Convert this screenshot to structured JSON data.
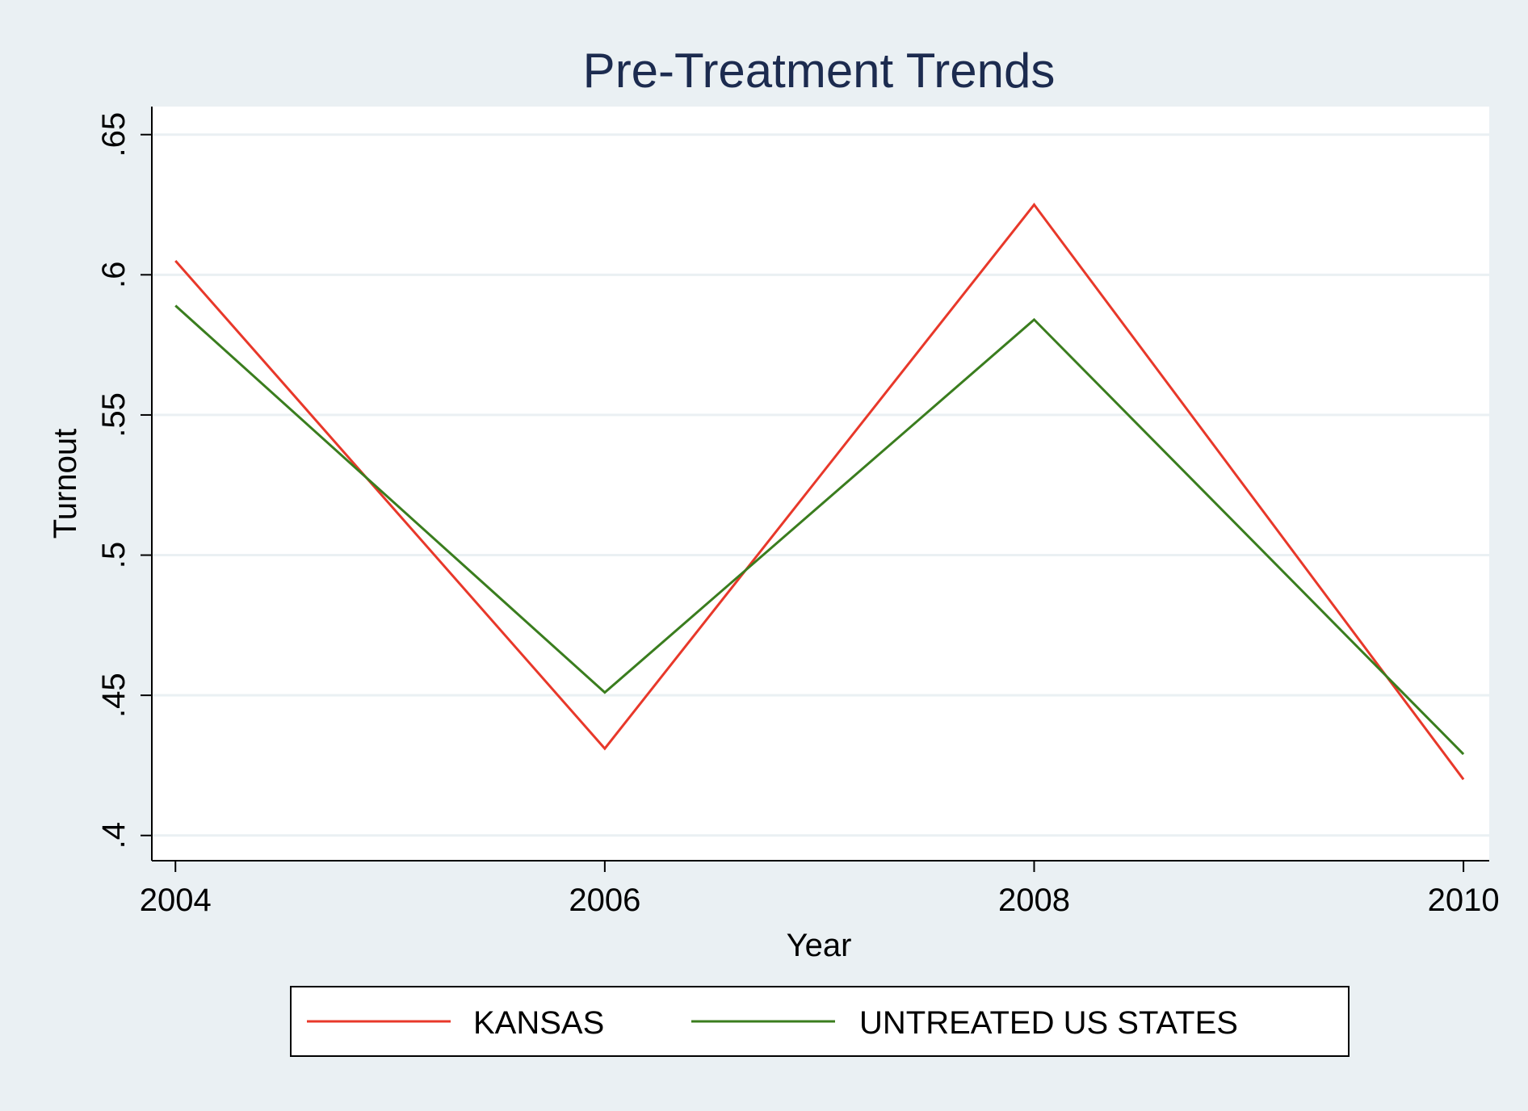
{
  "chart_data": {
    "type": "line",
    "title": "Pre-Treatment Trends",
    "xlabel": "Year",
    "ylabel": "Turnout",
    "x": [
      2004,
      2006,
      2008,
      2010
    ],
    "xlim": [
      2003.89,
      2010.12
    ],
    "ylim": [
      0.391,
      0.66
    ],
    "xticks": [
      {
        "value": 2004,
        "label": "2004"
      },
      {
        "value": 2006,
        "label": "2006"
      },
      {
        "value": 2008,
        "label": "2008"
      },
      {
        "value": 2010,
        "label": "2010"
      }
    ],
    "yticks": [
      {
        "value": 0.4,
        "label": ".4"
      },
      {
        "value": 0.45,
        "label": ".45"
      },
      {
        "value": 0.5,
        "label": ".5"
      },
      {
        "value": 0.55,
        "label": ".55"
      },
      {
        "value": 0.6,
        "label": ".6"
      },
      {
        "value": 0.65,
        "label": ".65"
      }
    ],
    "grid": true,
    "legend_position": "bottom",
    "series": [
      {
        "name": "KANSAS",
        "color": "#e8382a",
        "values": [
          0.605,
          0.431,
          0.625,
          0.42
        ]
      },
      {
        "name": "UNTREATED US STATES",
        "color": "#3a7d1e",
        "values": [
          0.589,
          0.451,
          0.584,
          0.429
        ]
      }
    ]
  },
  "colors": {
    "background": "#eaf0f3",
    "plot_area": "#ffffff",
    "gridline": "#eaf0f3",
    "title": "#1c2b4f",
    "axis": "#000000"
  }
}
